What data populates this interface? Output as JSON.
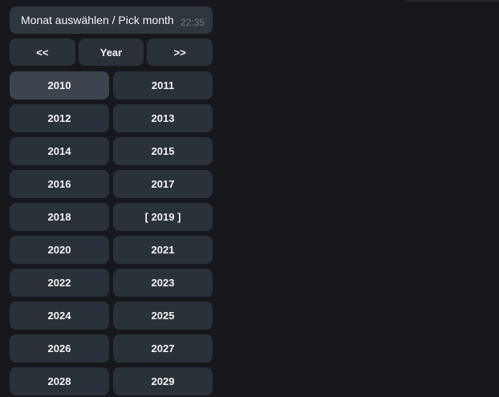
{
  "colors": {
    "background": "#17181c",
    "bubble": "#30363e",
    "button": "#2b3138",
    "button_highlight": "#3e444d",
    "text": "#f3f4f6",
    "timestamp": "#707a83",
    "edge_fragment": "#24262c"
  },
  "message": {
    "text": "Monat auswählen / Pick month",
    "time": "22:35"
  },
  "keyboard": {
    "nav": [
      {
        "label": "<<"
      },
      {
        "label": "Year"
      },
      {
        "label": ">>"
      }
    ],
    "years": [
      {
        "value": "2010",
        "label": "2010",
        "highlighted": true
      },
      {
        "value": "2011",
        "label": "2011"
      },
      {
        "value": "2012",
        "label": "2012"
      },
      {
        "value": "2013",
        "label": "2013"
      },
      {
        "value": "2014",
        "label": "2014"
      },
      {
        "value": "2015",
        "label": "2015"
      },
      {
        "value": "2016",
        "label": "2016"
      },
      {
        "value": "2017",
        "label": "2017"
      },
      {
        "value": "2018",
        "label": "2018"
      },
      {
        "value": "2019",
        "label": "[ 2019 ]",
        "selected": true
      },
      {
        "value": "2020",
        "label": "2020"
      },
      {
        "value": "2021",
        "label": "2021"
      },
      {
        "value": "2022",
        "label": "2022"
      },
      {
        "value": "2023",
        "label": "2023"
      },
      {
        "value": "2024",
        "label": "2024"
      },
      {
        "value": "2025",
        "label": "2025"
      },
      {
        "value": "2026",
        "label": "2026"
      },
      {
        "value": "2027",
        "label": "2027"
      },
      {
        "value": "2028",
        "label": "2028"
      },
      {
        "value": "2029",
        "label": "2029"
      }
    ]
  }
}
